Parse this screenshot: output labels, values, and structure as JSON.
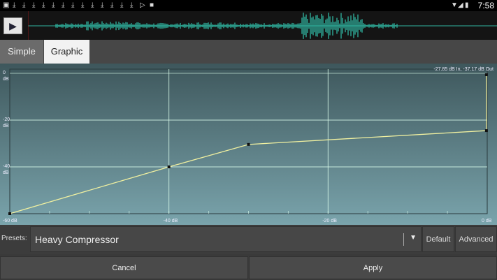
{
  "status_bar": {
    "time": "7:58",
    "icons": [
      "screenshot-icon",
      "download-icon",
      "download-icon",
      "download-icon",
      "download-icon",
      "download-icon",
      "download-icon",
      "download-icon",
      "download-icon",
      "download-icon",
      "download-icon",
      "download-icon",
      "download-icon",
      "download-icon",
      "play-store-icon",
      "stop-icon",
      "wifi-icon",
      "signal-icon",
      "battery-icon"
    ]
  },
  "waveform": {
    "color": "#2fb5a0"
  },
  "tabs": [
    {
      "label": "Simple",
      "active": false
    },
    {
      "label": "Graphic",
      "active": true
    }
  ],
  "chart": {
    "readout": "-27.85 dB In, -37.17 dB Out",
    "x_ticks": [
      "-60 dB",
      "-40 dB",
      "-20 dB",
      "0 dB"
    ],
    "y_ticks": [
      {
        "v": "0",
        "u": "dB"
      },
      {
        "v": "-20",
        "u": "dB"
      },
      {
        "v": "-40",
        "u": "dB"
      }
    ],
    "curve_color": "#f0f0a0"
  },
  "chart_data": {
    "type": "line",
    "xlim": [
      -60,
      0
    ],
    "ylim": [
      -60,
      0
    ],
    "x_unit": "dB",
    "y_unit": "dB",
    "points": [
      [
        -60,
        -60
      ],
      [
        -40,
        -40
      ],
      [
        -30,
        -30.4
      ],
      [
        -0.1,
        -24.5
      ],
      [
        -0.1,
        -0.6
      ]
    ],
    "grid": true
  },
  "presets": {
    "label": "Presets:",
    "value": "Heavy Compressor",
    "default_label": "Default",
    "advanced_label": "Advanced"
  },
  "actions": {
    "cancel": "Cancel",
    "apply": "Apply"
  }
}
